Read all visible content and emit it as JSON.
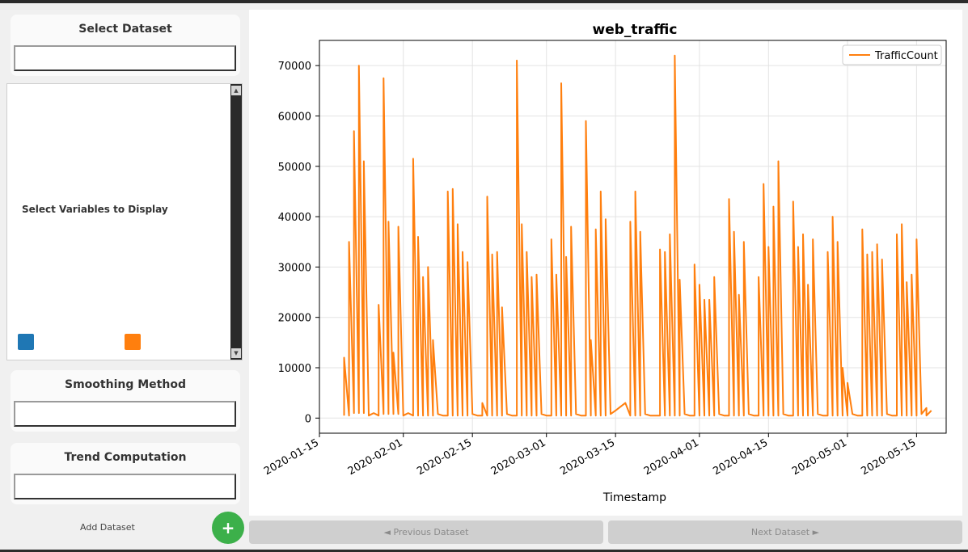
{
  "sidebar": {
    "select_dataset": {
      "title": "Select Dataset",
      "value": ""
    },
    "variables": {
      "label": "Select Variables to Display",
      "swatches": [
        {
          "color": "#1f77b4"
        },
        {
          "color": "#ff7f0e"
        }
      ]
    },
    "smoothing": {
      "title": "Smoothing Method",
      "value": ""
    },
    "trend": {
      "title": "Trend Computation",
      "value": ""
    },
    "add_dataset": {
      "label": "Add Dataset",
      "icon": "+"
    }
  },
  "nav": {
    "prev_label": "◄ Previous Dataset",
    "next_label": "Next Dataset ►"
  },
  "chart_data": {
    "type": "line",
    "title": "web_traffic",
    "xlabel": "Timestamp",
    "ylabel": "",
    "legend": {
      "placement": "top-right"
    },
    "grid": true,
    "xlim": [
      "2020-01-15",
      "2020-05-21"
    ],
    "ylim": [
      -3000,
      75000
    ],
    "x_ticks": [
      "2020-01-15",
      "2020-02-01",
      "2020-02-15",
      "2020-03-01",
      "2020-03-15",
      "2020-04-01",
      "2020-04-15",
      "2020-05-01",
      "2020-05-15"
    ],
    "y_ticks": [
      0,
      10000,
      20000,
      30000,
      40000,
      50000,
      60000,
      70000
    ],
    "series": [
      {
        "name": "TrafficCount",
        "color": "#ff7f0e",
        "points": [
          [
            "2020-01-20",
            500
          ],
          [
            "2020-01-20",
            12000
          ],
          [
            "2020-01-21",
            500
          ],
          [
            "2020-01-21",
            35000
          ],
          [
            "2020-01-22",
            1000
          ],
          [
            "2020-01-22",
            57000
          ],
          [
            "2020-01-23",
            1000
          ],
          [
            "2020-01-23",
            70000
          ],
          [
            "2020-01-24",
            1000
          ],
          [
            "2020-01-24",
            51000
          ],
          [
            "2020-01-25",
            500
          ],
          [
            "2020-01-26",
            1000
          ],
          [
            "2020-01-27",
            500
          ],
          [
            "2020-01-27",
            22500
          ],
          [
            "2020-01-28",
            800
          ],
          [
            "2020-01-28",
            67500
          ],
          [
            "2020-01-29",
            800
          ],
          [
            "2020-01-29",
            39000
          ],
          [
            "2020-01-30",
            800
          ],
          [
            "2020-01-30",
            13000
          ],
          [
            "2020-01-31",
            800
          ],
          [
            "2020-01-31",
            38000
          ],
          [
            "2020-02-01",
            500
          ],
          [
            "2020-02-02",
            1000
          ],
          [
            "2020-02-03",
            500
          ],
          [
            "2020-02-03",
            51500
          ],
          [
            "2020-02-04",
            500
          ],
          [
            "2020-02-04",
            36000
          ],
          [
            "2020-02-05",
            500
          ],
          [
            "2020-02-05",
            28000
          ],
          [
            "2020-02-06",
            500
          ],
          [
            "2020-02-06",
            30000
          ],
          [
            "2020-02-07",
            500
          ],
          [
            "2020-02-07",
            15500
          ],
          [
            "2020-02-08",
            800
          ],
          [
            "2020-02-09",
            500
          ],
          [
            "2020-02-10",
            500
          ],
          [
            "2020-02-10",
            45000
          ],
          [
            "2020-02-11",
            500
          ],
          [
            "2020-02-11",
            45500
          ],
          [
            "2020-02-12",
            500
          ],
          [
            "2020-02-12",
            38500
          ],
          [
            "2020-02-13",
            500
          ],
          [
            "2020-02-13",
            33000
          ],
          [
            "2020-02-14",
            500
          ],
          [
            "2020-02-14",
            31000
          ],
          [
            "2020-02-15",
            800
          ],
          [
            "2020-02-16",
            500
          ],
          [
            "2020-02-17",
            500
          ],
          [
            "2020-02-17",
            3000
          ],
          [
            "2020-02-18",
            500
          ],
          [
            "2020-02-18",
            44000
          ],
          [
            "2020-02-19",
            500
          ],
          [
            "2020-02-19",
            32500
          ],
          [
            "2020-02-20",
            500
          ],
          [
            "2020-02-20",
            33000
          ],
          [
            "2020-02-21",
            500
          ],
          [
            "2020-02-21",
            22000
          ],
          [
            "2020-02-22",
            800
          ],
          [
            "2020-02-23",
            500
          ],
          [
            "2020-02-24",
            500
          ],
          [
            "2020-02-24",
            71000
          ],
          [
            "2020-02-25",
            500
          ],
          [
            "2020-02-25",
            38500
          ],
          [
            "2020-02-26",
            500
          ],
          [
            "2020-02-26",
            33000
          ],
          [
            "2020-02-27",
            500
          ],
          [
            "2020-02-27",
            28000
          ],
          [
            "2020-02-28",
            500
          ],
          [
            "2020-02-28",
            28500
          ],
          [
            "2020-02-29",
            800
          ],
          [
            "2020-03-01",
            500
          ],
          [
            "2020-03-02",
            500
          ],
          [
            "2020-03-02",
            35500
          ],
          [
            "2020-03-03",
            500
          ],
          [
            "2020-03-03",
            28500
          ],
          [
            "2020-03-04",
            500
          ],
          [
            "2020-03-04",
            66500
          ],
          [
            "2020-03-05",
            500
          ],
          [
            "2020-03-05",
            32000
          ],
          [
            "2020-03-06",
            500
          ],
          [
            "2020-03-06",
            38000
          ],
          [
            "2020-03-07",
            800
          ],
          [
            "2020-03-08",
            500
          ],
          [
            "2020-03-09",
            500
          ],
          [
            "2020-03-09",
            59000
          ],
          [
            "2020-03-10",
            500
          ],
          [
            "2020-03-10",
            15500
          ],
          [
            "2020-03-11",
            500
          ],
          [
            "2020-03-11",
            37500
          ],
          [
            "2020-03-12",
            500
          ],
          [
            "2020-03-12",
            45000
          ],
          [
            "2020-03-13",
            500
          ],
          [
            "2020-03-13",
            39500
          ],
          [
            "2020-03-14",
            800
          ],
          [
            "2020-03-15",
            1500
          ],
          [
            "2020-03-17",
            3000
          ],
          [
            "2020-03-18",
            500
          ],
          [
            "2020-03-18",
            39000
          ],
          [
            "2020-03-19",
            500
          ],
          [
            "2020-03-19",
            45000
          ],
          [
            "2020-03-20",
            500
          ],
          [
            "2020-03-20",
            37000
          ],
          [
            "2020-03-21",
            800
          ],
          [
            "2020-03-22",
            500
          ],
          [
            "2020-03-24",
            500
          ],
          [
            "2020-03-24",
            33500
          ],
          [
            "2020-03-25",
            500
          ],
          [
            "2020-03-25",
            33000
          ],
          [
            "2020-03-26",
            500
          ],
          [
            "2020-03-26",
            36500
          ],
          [
            "2020-03-27",
            500
          ],
          [
            "2020-03-27",
            72000
          ],
          [
            "2020-03-28",
            500
          ],
          [
            "2020-03-28",
            27500
          ],
          [
            "2020-03-29",
            800
          ],
          [
            "2020-03-30",
            500
          ],
          [
            "2020-03-31",
            500
          ],
          [
            "2020-03-31",
            30500
          ],
          [
            "2020-04-01",
            500
          ],
          [
            "2020-04-01",
            26500
          ],
          [
            "2020-04-02",
            500
          ],
          [
            "2020-04-02",
            23500
          ],
          [
            "2020-04-03",
            500
          ],
          [
            "2020-04-03",
            23500
          ],
          [
            "2020-04-04",
            500
          ],
          [
            "2020-04-04",
            28000
          ],
          [
            "2020-04-05",
            800
          ],
          [
            "2020-04-06",
            500
          ],
          [
            "2020-04-07",
            500
          ],
          [
            "2020-04-07",
            43500
          ],
          [
            "2020-04-08",
            500
          ],
          [
            "2020-04-08",
            37000
          ],
          [
            "2020-04-09",
            500
          ],
          [
            "2020-04-09",
            24500
          ],
          [
            "2020-04-10",
            500
          ],
          [
            "2020-04-10",
            35000
          ],
          [
            "2020-04-11",
            800
          ],
          [
            "2020-04-12",
            500
          ],
          [
            "2020-04-13",
            500
          ],
          [
            "2020-04-13",
            28000
          ],
          [
            "2020-04-14",
            500
          ],
          [
            "2020-04-14",
            46500
          ],
          [
            "2020-04-15",
            500
          ],
          [
            "2020-04-15",
            34000
          ],
          [
            "2020-04-16",
            500
          ],
          [
            "2020-04-16",
            42000
          ],
          [
            "2020-04-17",
            500
          ],
          [
            "2020-04-17",
            51000
          ],
          [
            "2020-04-18",
            800
          ],
          [
            "2020-04-19",
            500
          ],
          [
            "2020-04-20",
            500
          ],
          [
            "2020-04-20",
            43000
          ],
          [
            "2020-04-21",
            500
          ],
          [
            "2020-04-21",
            34000
          ],
          [
            "2020-04-22",
            500
          ],
          [
            "2020-04-22",
            36500
          ],
          [
            "2020-04-23",
            500
          ],
          [
            "2020-04-23",
            26500
          ],
          [
            "2020-04-24",
            500
          ],
          [
            "2020-04-24",
            35500
          ],
          [
            "2020-04-25",
            800
          ],
          [
            "2020-04-26",
            500
          ],
          [
            "2020-04-27",
            500
          ],
          [
            "2020-04-27",
            33000
          ],
          [
            "2020-04-28",
            500
          ],
          [
            "2020-04-28",
            40000
          ],
          [
            "2020-04-29",
            500
          ],
          [
            "2020-04-29",
            35000
          ],
          [
            "2020-04-30",
            500
          ],
          [
            "2020-04-30",
            10000
          ],
          [
            "2020-05-01",
            500
          ],
          [
            "2020-05-01",
            7000
          ],
          [
            "2020-05-02",
            800
          ],
          [
            "2020-05-03",
            500
          ],
          [
            "2020-05-04",
            500
          ],
          [
            "2020-05-04",
            37500
          ],
          [
            "2020-05-05",
            500
          ],
          [
            "2020-05-05",
            32500
          ],
          [
            "2020-05-06",
            500
          ],
          [
            "2020-05-06",
            33000
          ],
          [
            "2020-05-07",
            500
          ],
          [
            "2020-05-07",
            34500
          ],
          [
            "2020-05-08",
            500
          ],
          [
            "2020-05-08",
            31500
          ],
          [
            "2020-05-09",
            800
          ],
          [
            "2020-05-10",
            500
          ],
          [
            "2020-05-11",
            500
          ],
          [
            "2020-05-11",
            36500
          ],
          [
            "2020-05-12",
            500
          ],
          [
            "2020-05-12",
            38500
          ],
          [
            "2020-05-13",
            500
          ],
          [
            "2020-05-13",
            27000
          ],
          [
            "2020-05-14",
            500
          ],
          [
            "2020-05-14",
            28500
          ],
          [
            "2020-05-15",
            500
          ],
          [
            "2020-05-15",
            35500
          ],
          [
            "2020-05-16",
            800
          ],
          [
            "2020-05-17",
            2000
          ],
          [
            "2020-05-17",
            500
          ],
          [
            "2020-05-18",
            1500
          ]
        ]
      }
    ]
  }
}
